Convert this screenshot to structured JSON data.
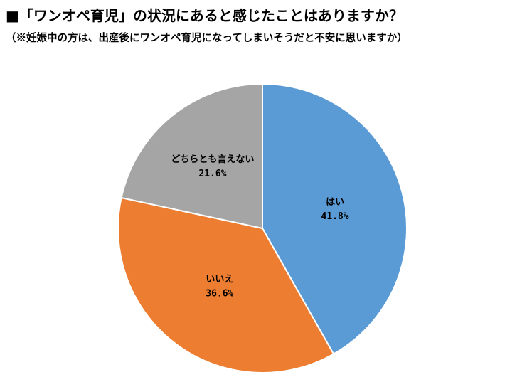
{
  "header": {
    "title": "■「ワンオペ育児」の状況にあると感じたことはありますか？",
    "subtitle": "（※妊娠中の方は、出産後にワンオペ育児になってしまいそうだと不安に思いますか）"
  },
  "chart_data": {
    "type": "pie",
    "title": "■「ワンオペ育児」の状況にあると感じたことはありますか？",
    "subtitle": "（※妊娠中の方は、出産後にワンオペ育児になってしまいそうだと不安に思いますか）",
    "start": "12 o'clock, clockwise",
    "slices": [
      {
        "label": "はい",
        "value": 41.8,
        "value_label": "41.8%",
        "color": "#5B9BD5"
      },
      {
        "label": "いいえ",
        "value": 36.6,
        "value_label": "36.6%",
        "color": "#ED7D31"
      },
      {
        "label": "どちらとも言えない",
        "value": 21.6,
        "value_label": "21.6%",
        "color": "#A5A5A5"
      }
    ],
    "legend": "none"
  }
}
